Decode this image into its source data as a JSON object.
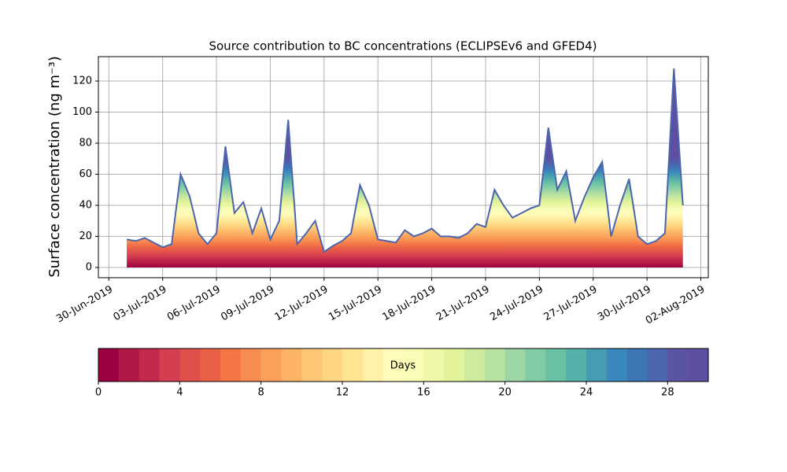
{
  "chart_data": {
    "type": "area",
    "title": "Source contribution to BC concentrations (ECLIPSEv6 and GFED4)",
    "y_label": "Surface concentration (ng m⁻³)",
    "x": [
      "2019-07-01T00:00",
      "2019-07-01T12:00",
      "2019-07-02T00:00",
      "2019-07-02T12:00",
      "2019-07-03T00:00",
      "2019-07-03T12:00",
      "2019-07-04T00:00",
      "2019-07-04T12:00",
      "2019-07-05T00:00",
      "2019-07-05T12:00",
      "2019-07-06T00:00",
      "2019-07-06T12:00",
      "2019-07-07T00:00",
      "2019-07-07T12:00",
      "2019-07-08T00:00",
      "2019-07-08T12:00",
      "2019-07-09T00:00",
      "2019-07-09T12:00",
      "2019-07-10T00:00",
      "2019-07-10T12:00",
      "2019-07-11T00:00",
      "2019-07-11T12:00",
      "2019-07-12T00:00",
      "2019-07-12T12:00",
      "2019-07-13T00:00",
      "2019-07-13T12:00",
      "2019-07-14T00:00",
      "2019-07-14T12:00",
      "2019-07-15T00:00",
      "2019-07-15T12:00",
      "2019-07-16T00:00",
      "2019-07-16T12:00",
      "2019-07-17T00:00",
      "2019-07-17T12:00",
      "2019-07-18T00:00",
      "2019-07-18T12:00",
      "2019-07-19T00:00",
      "2019-07-19T12:00",
      "2019-07-20T00:00",
      "2019-07-20T12:00",
      "2019-07-21T00:00",
      "2019-07-21T12:00",
      "2019-07-22T00:00",
      "2019-07-22T12:00",
      "2019-07-23T00:00",
      "2019-07-23T12:00",
      "2019-07-24T00:00",
      "2019-07-24T12:00",
      "2019-07-25T00:00",
      "2019-07-25T12:00",
      "2019-07-26T00:00",
      "2019-07-26T12:00",
      "2019-07-27T00:00",
      "2019-07-27T12:00",
      "2019-07-28T00:00",
      "2019-07-28T12:00",
      "2019-07-29T00:00",
      "2019-07-29T12:00",
      "2019-07-30T00:00",
      "2019-07-30T12:00",
      "2019-07-31T00:00",
      "2019-07-31T12:00",
      "2019-08-01T00:00"
    ],
    "values": [
      18,
      17,
      19,
      16,
      13,
      15,
      60,
      46,
      22,
      15,
      22,
      78,
      35,
      42,
      22,
      38,
      18,
      30,
      95,
      15,
      22,
      30,
      10,
      14,
      17,
      22,
      53,
      40,
      18,
      17,
      16,
      24,
      20,
      22,
      25,
      20,
      20,
      19,
      22,
      28,
      26,
      50,
      40,
      32,
      35,
      38,
      40,
      90,
      50,
      62,
      30,
      45,
      58,
      68,
      20,
      40,
      57,
      20,
      15,
      17,
      22,
      128,
      40
    ],
    "color": "#4b65ae",
    "xlim": [
      "2019-06-29T10:00",
      "2019-08-02T10:00"
    ],
    "xticks": [
      {
        "value": "2019-06-30T00:00",
        "label": "30-Jun-2019"
      },
      {
        "value": "2019-07-03T00:00",
        "label": "03-Jul-2019"
      },
      {
        "value": "2019-07-06T00:00",
        "label": "06-Jul-2019"
      },
      {
        "value": "2019-07-09T00:00",
        "label": "09-Jul-2019"
      },
      {
        "value": "2019-07-12T00:00",
        "label": "12-Jul-2019"
      },
      {
        "value": "2019-07-15T00:00",
        "label": "15-Jul-2019"
      },
      {
        "value": "2019-07-18T00:00",
        "label": "18-Jul-2019"
      },
      {
        "value": "2019-07-21T00:00",
        "label": "21-Jul-2019"
      },
      {
        "value": "2019-07-24T00:00",
        "label": "24-Jul-2019"
      },
      {
        "value": "2019-07-27T00:00",
        "label": "27-Jul-2019"
      },
      {
        "value": "2019-07-30T00:00",
        "label": "30-Jul-2019"
      },
      {
        "value": "2019-08-02T00:00",
        "label": "02-Aug-2019"
      }
    ],
    "ylim": [
      -6.6,
      135.7
    ],
    "yticks": [
      0,
      20,
      40,
      60,
      80,
      100,
      120
    ],
    "grid": true,
    "colorbar": {
      "label": "Days",
      "lim": [
        0,
        30
      ],
      "ticks": [
        0,
        4,
        8,
        12,
        16,
        20,
        24,
        28
      ],
      "colors": [
        "#9e0142",
        "#b01746",
        "#c2294a",
        "#d53e4f",
        "#e04f4a",
        "#ea6046",
        "#f57548",
        "#f88d52",
        "#fba05b",
        "#fdb365",
        "#fdc574",
        "#fed683",
        "#fee593",
        "#fff1a8",
        "#fffcbb",
        "#f9fcb5",
        "#eef8a8",
        "#e2f39a",
        "#cdea9e",
        "#b7e2a1",
        "#9cd6a4",
        "#82cca5",
        "#69c1a5",
        "#57afaa",
        "#459cb3",
        "#3a88bc",
        "#3d75b5",
        "#4b65ae",
        "#5b54a4",
        "#5e4fa2"
      ]
    }
  }
}
